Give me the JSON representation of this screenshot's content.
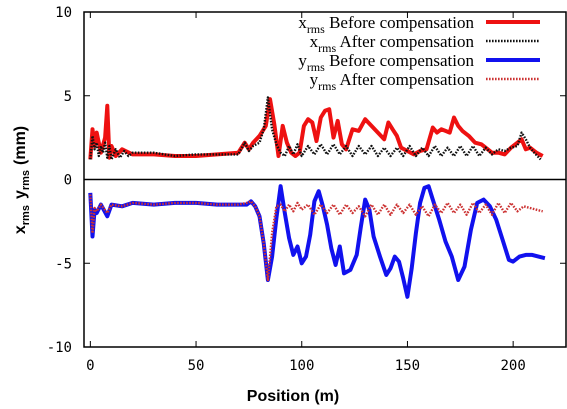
{
  "chart_data": {
    "type": "line",
    "xlabel": "Position (m)",
    "ylabel_main": "x",
    "ylabel_main_sub": "rms",
    "ylabel_rest": "y",
    "ylabel_rest_sub": "rms",
    "ylabel_unit": "(mm)",
    "xlim": [
      -3,
      225
    ],
    "ylim": [
      -10,
      10
    ],
    "x_ticks": [
      "0",
      "50",
      "100",
      "150",
      "200"
    ],
    "x_tick_values": [
      0,
      50,
      100,
      150,
      200
    ],
    "y_ticks": [
      "10",
      "5",
      "0",
      "-5",
      "-10"
    ],
    "y_tick_values": [
      10,
      5,
      0,
      -5,
      -10
    ],
    "zero_line": true,
    "grid": false,
    "legend_position": "top-right",
    "series": [
      {
        "name_sym": "x",
        "name_sub": "rms",
        "name_text": "Before compensation",
        "color": "#ee1111",
        "dash": "solid",
        "x": [
          0,
          1,
          2,
          3,
          5,
          7,
          8,
          9,
          10,
          12,
          15,
          20,
          30,
          40,
          50,
          60,
          70,
          73,
          75,
          77,
          80,
          83,
          85,
          87,
          89,
          91,
          93,
          95,
          97,
          99,
          101,
          103,
          105,
          107,
          109,
          111,
          113,
          115,
          117,
          119,
          121,
          124,
          127,
          130,
          133,
          136,
          139,
          141,
          143,
          145,
          147,
          150,
          153,
          156,
          159,
          162,
          164,
          166,
          168,
          170,
          172,
          174,
          176,
          179,
          182,
          185,
          188,
          190,
          193,
          196,
          199,
          202,
          204,
          206,
          208,
          211,
          214
        ],
        "values": [
          1.2,
          3.0,
          2.0,
          2.8,
          1.6,
          2.5,
          4.4,
          1.3,
          2.0,
          1.4,
          1.8,
          1.5,
          1.5,
          1.4,
          1.4,
          1.5,
          1.6,
          2.2,
          1.8,
          2.2,
          2.6,
          3.2,
          4.8,
          3.3,
          1.4,
          3.2,
          2.2,
          1.6,
          1.4,
          1.6,
          3.2,
          3.6,
          3.4,
          2.3,
          3.7,
          4.1,
          4.2,
          2.5,
          3.5,
          2.1,
          1.8,
          3.0,
          2.9,
          3.6,
          3.2,
          2.8,
          2.4,
          3.4,
          3.0,
          2.6,
          1.9,
          1.7,
          1.5,
          1.7,
          1.8,
          3.1,
          2.8,
          3.0,
          2.9,
          2.8,
          3.7,
          3.2,
          2.9,
          2.6,
          2.2,
          2.1,
          1.8,
          1.6,
          1.6,
          1.5,
          1.9,
          2.2,
          2.4,
          1.8,
          1.9,
          1.6,
          1.4
        ]
      },
      {
        "name_sym": "x",
        "name_sub": "rms",
        "name_text": "After  compensation",
        "color": "#111111",
        "dash": "dotted",
        "x": [
          0,
          1,
          2,
          3,
          4,
          5,
          6,
          7,
          8,
          9,
          10,
          12,
          14,
          16,
          18,
          20,
          30,
          40,
          50,
          60,
          70,
          73,
          75,
          77,
          80,
          82,
          84,
          86,
          88,
          90,
          92,
          94,
          96,
          98,
          100,
          103,
          106,
          109,
          112,
          115,
          118,
          121,
          124,
          127,
          130,
          133,
          136,
          139,
          142,
          145,
          148,
          151,
          154,
          157,
          160,
          163,
          166,
          169,
          172,
          175,
          178,
          181,
          184,
          187,
          190,
          193,
          196,
          199,
          202,
          204,
          206,
          208,
          210,
          213
        ],
        "values": [
          1.2,
          2.6,
          1.8,
          2.2,
          1.4,
          2.0,
          1.6,
          2.2,
          1.3,
          2.0,
          1.2,
          1.8,
          1.3,
          1.7,
          1.4,
          1.6,
          1.6,
          1.4,
          1.5,
          1.5,
          1.5,
          2.2,
          1.7,
          2.0,
          2.2,
          3.0,
          4.9,
          3.0,
          2.1,
          1.6,
          1.4,
          2.0,
          1.5,
          2.1,
          1.4,
          2.0,
          1.5,
          2.1,
          1.5,
          2.1,
          1.5,
          2.0,
          1.4,
          2.0,
          1.5,
          2.0,
          1.4,
          1.9,
          1.4,
          1.9,
          1.4,
          2.0,
          1.4,
          1.9,
          1.4,
          2.0,
          1.4,
          1.9,
          1.4,
          2.0,
          1.4,
          2.0,
          1.4,
          1.9,
          1.5,
          1.8,
          1.7,
          1.9,
          2.0,
          2.8,
          2.4,
          1.9,
          1.6,
          1.2
        ]
      },
      {
        "name_sym": "y",
        "name_sub": "rms",
        "name_text": "Before compensation",
        "color": "#1111ee",
        "dash": "solid",
        "x": [
          0,
          1,
          2,
          3,
          5,
          8,
          10,
          15,
          20,
          30,
          40,
          50,
          60,
          70,
          74,
          76,
          78,
          80,
          82,
          84,
          86,
          88,
          90,
          92,
          94,
          96,
          98,
          100,
          102,
          104,
          106,
          108,
          110,
          112,
          114,
          116,
          118,
          120,
          123,
          126,
          128,
          130,
          132,
          134,
          137,
          140,
          142,
          144,
          146,
          148,
          150,
          152,
          154,
          156,
          158,
          160,
          162,
          165,
          168,
          171,
          174,
          177,
          180,
          183,
          186,
          189,
          192,
          195,
          198,
          200,
          203,
          206,
          209,
          212,
          215
        ],
        "values": [
          -0.8,
          -3.4,
          -1.8,
          -2.0,
          -1.5,
          -2.2,
          -1.5,
          -1.6,
          -1.4,
          -1.5,
          -1.4,
          -1.4,
          -1.5,
          -1.5,
          -1.5,
          -1.3,
          -1.6,
          -2.2,
          -3.8,
          -6.0,
          -4.6,
          -2.3,
          -0.4,
          -2.0,
          -3.5,
          -4.5,
          -4.0,
          -5.0,
          -4.6,
          -3.3,
          -1.3,
          -0.7,
          -1.6,
          -2.7,
          -4.1,
          -5.1,
          -4.0,
          -5.6,
          -5.4,
          -4.5,
          -2.8,
          -1.2,
          -1.8,
          -3.4,
          -4.6,
          -5.7,
          -5.3,
          -4.6,
          -4.9,
          -5.9,
          -7.0,
          -5.3,
          -3.2,
          -1.4,
          -0.5,
          -0.4,
          -1.2,
          -2.4,
          -3.7,
          -4.6,
          -6.0,
          -5.2,
          -3.0,
          -1.4,
          -1.2,
          -1.6,
          -2.4,
          -3.6,
          -4.8,
          -4.9,
          -4.6,
          -4.5,
          -4.5,
          -4.6,
          -4.7
        ]
      },
      {
        "name_sym": "y",
        "name_sub": "rms",
        "name_text": "After  compensation",
        "color": "#cc3333",
        "dash": "dotted",
        "x": [
          0,
          1,
          2,
          3,
          5,
          8,
          10,
          15,
          20,
          30,
          40,
          50,
          60,
          70,
          74,
          76,
          78,
          80,
          82,
          84,
          86,
          88,
          90,
          92,
          94,
          96,
          98,
          100,
          103,
          106,
          109,
          112,
          115,
          118,
          121,
          124,
          127,
          130,
          133,
          136,
          139,
          142,
          145,
          148,
          151,
          154,
          157,
          160,
          163,
          166,
          169,
          172,
          175,
          178,
          181,
          184,
          187,
          190,
          193,
          196,
          199,
          202,
          205,
          208,
          211,
          214
        ],
        "values": [
          -0.9,
          -3.2,
          -1.7,
          -1.9,
          -1.5,
          -2.0,
          -1.5,
          -1.6,
          -1.4,
          -1.5,
          -1.4,
          -1.4,
          -1.5,
          -1.5,
          -1.4,
          -1.3,
          -1.6,
          -2.2,
          -3.8,
          -6.0,
          -3.2,
          -1.6,
          -1.5,
          -1.9,
          -1.5,
          -1.9,
          -1.4,
          -1.8,
          -1.5,
          -2.1,
          -1.5,
          -2.0,
          -1.5,
          -2.1,
          -1.5,
          -2.0,
          -1.6,
          -2.2,
          -1.5,
          -2.1,
          -1.5,
          -2.1,
          -1.5,
          -2.0,
          -1.5,
          -2.1,
          -1.6,
          -2.2,
          -1.5,
          -2.0,
          -1.4,
          -2.0,
          -1.5,
          -2.1,
          -1.4,
          -2.0,
          -1.5,
          -2.1,
          -1.4,
          -2.0,
          -1.4,
          -1.9,
          -1.6,
          -1.7,
          -1.8,
          -1.9
        ]
      }
    ]
  }
}
